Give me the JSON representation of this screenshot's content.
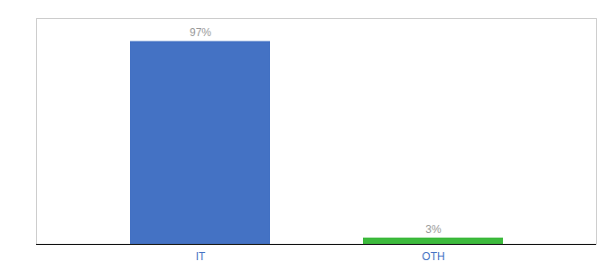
{
  "chart_data": {
    "type": "bar",
    "categories": [
      "IT",
      "OTH"
    ],
    "values": [
      97,
      3
    ],
    "value_labels": [
      "97%",
      "3%"
    ],
    "colors": [
      "#4472c4",
      "#3dba3d"
    ],
    "ylim": [
      0,
      108
    ],
    "data_labels": true,
    "tick_labels": "x",
    "grid": false
  }
}
